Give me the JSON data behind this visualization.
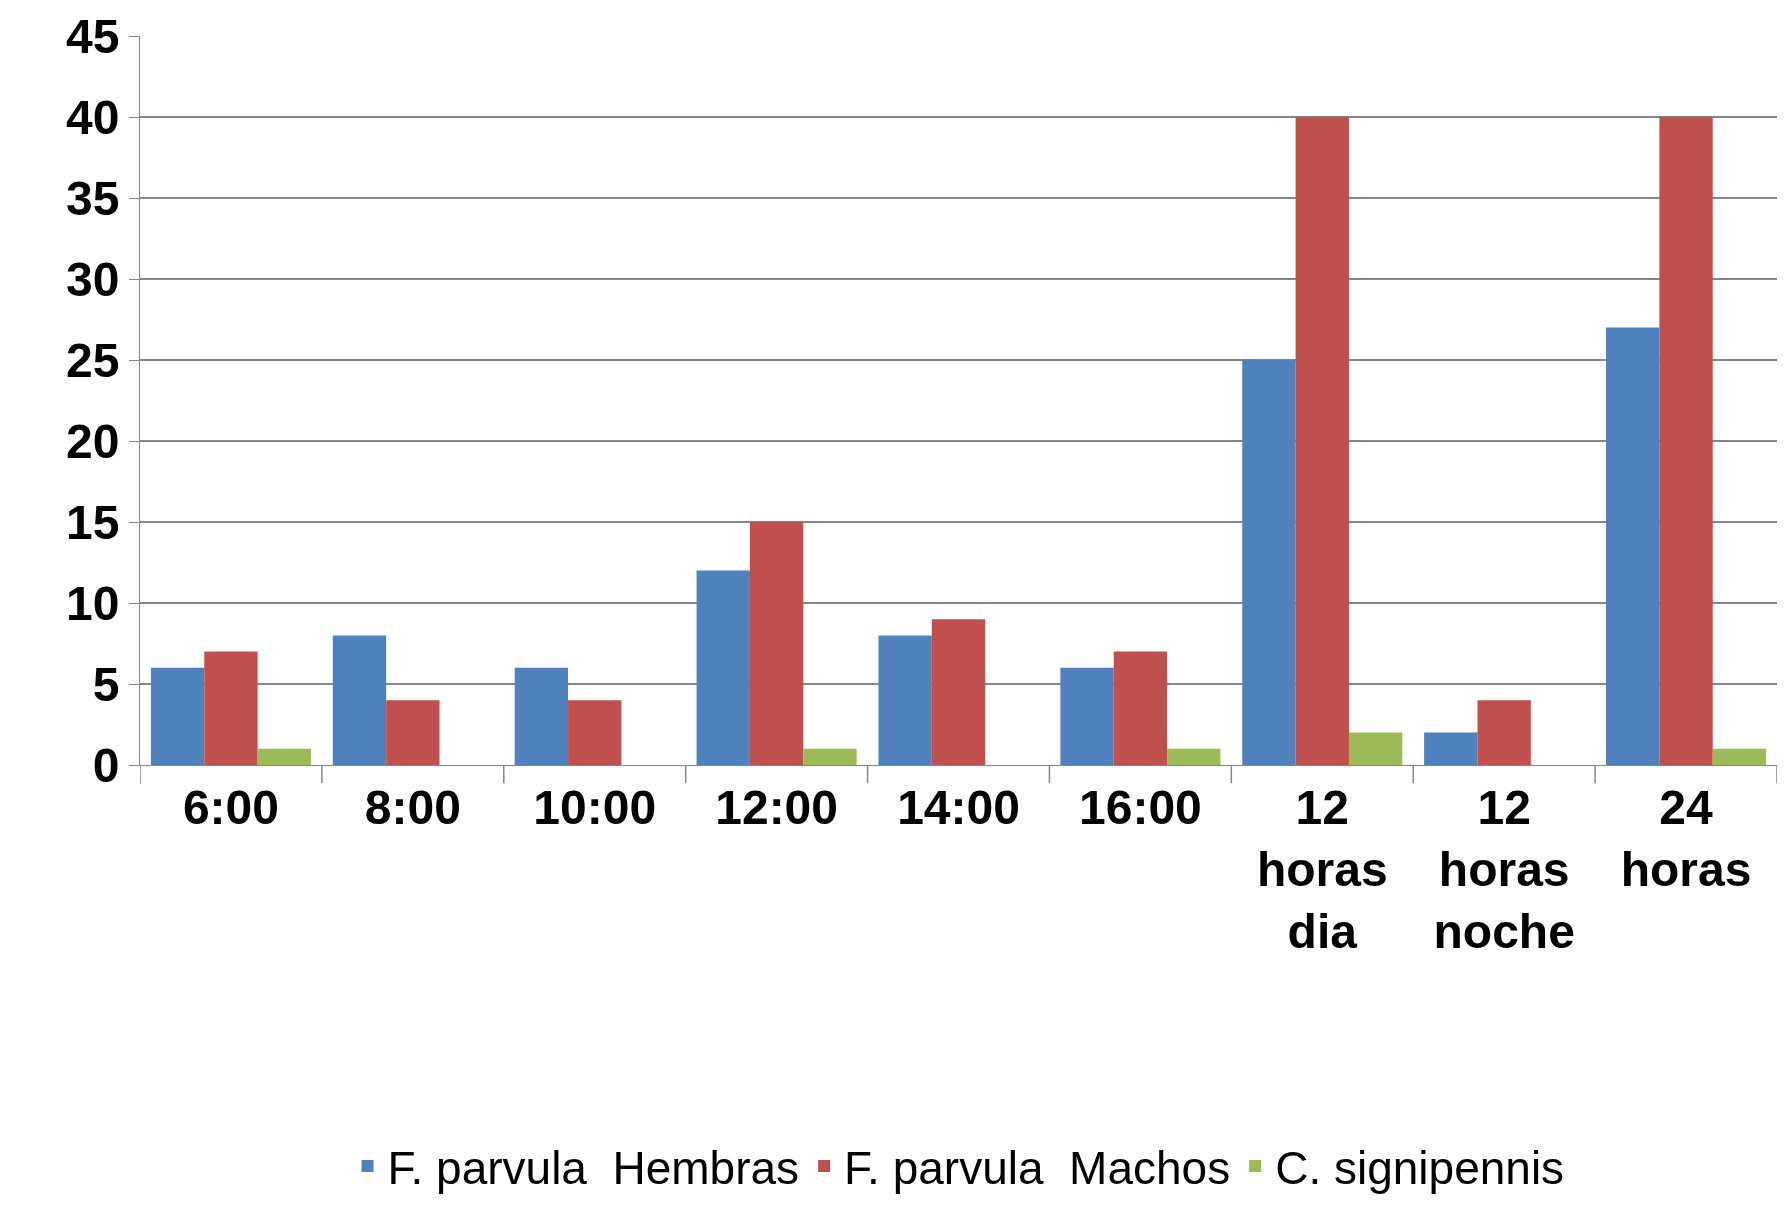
{
  "chart_data": {
    "type": "bar",
    "categories": [
      "6:00",
      "8:00",
      "10:00",
      "12:00",
      "14:00",
      "16:00",
      "12 horas dia",
      "12 horas noche",
      "24 horas"
    ],
    "series": [
      {
        "name": "F. parvula  Hembras",
        "color": "#4f81bd",
        "values": [
          6,
          8,
          6,
          12,
          8,
          6,
          25,
          2,
          27
        ]
      },
      {
        "name": "F. parvula  Machos",
        "color": "#c0504d",
        "values": [
          7,
          4,
          4,
          15,
          9,
          7,
          40,
          4,
          40
        ]
      },
      {
        "name": "C. signipennis",
        "color": "#9bbb59",
        "values": [
          1,
          0,
          0,
          1,
          0,
          1,
          2,
          0,
          1
        ]
      }
    ],
    "ylim": [
      0,
      45
    ],
    "yticks": [
      0,
      5,
      10,
      15,
      20,
      25,
      30,
      35,
      40,
      45
    ],
    "grid": "y",
    "legend": "bottom"
  }
}
